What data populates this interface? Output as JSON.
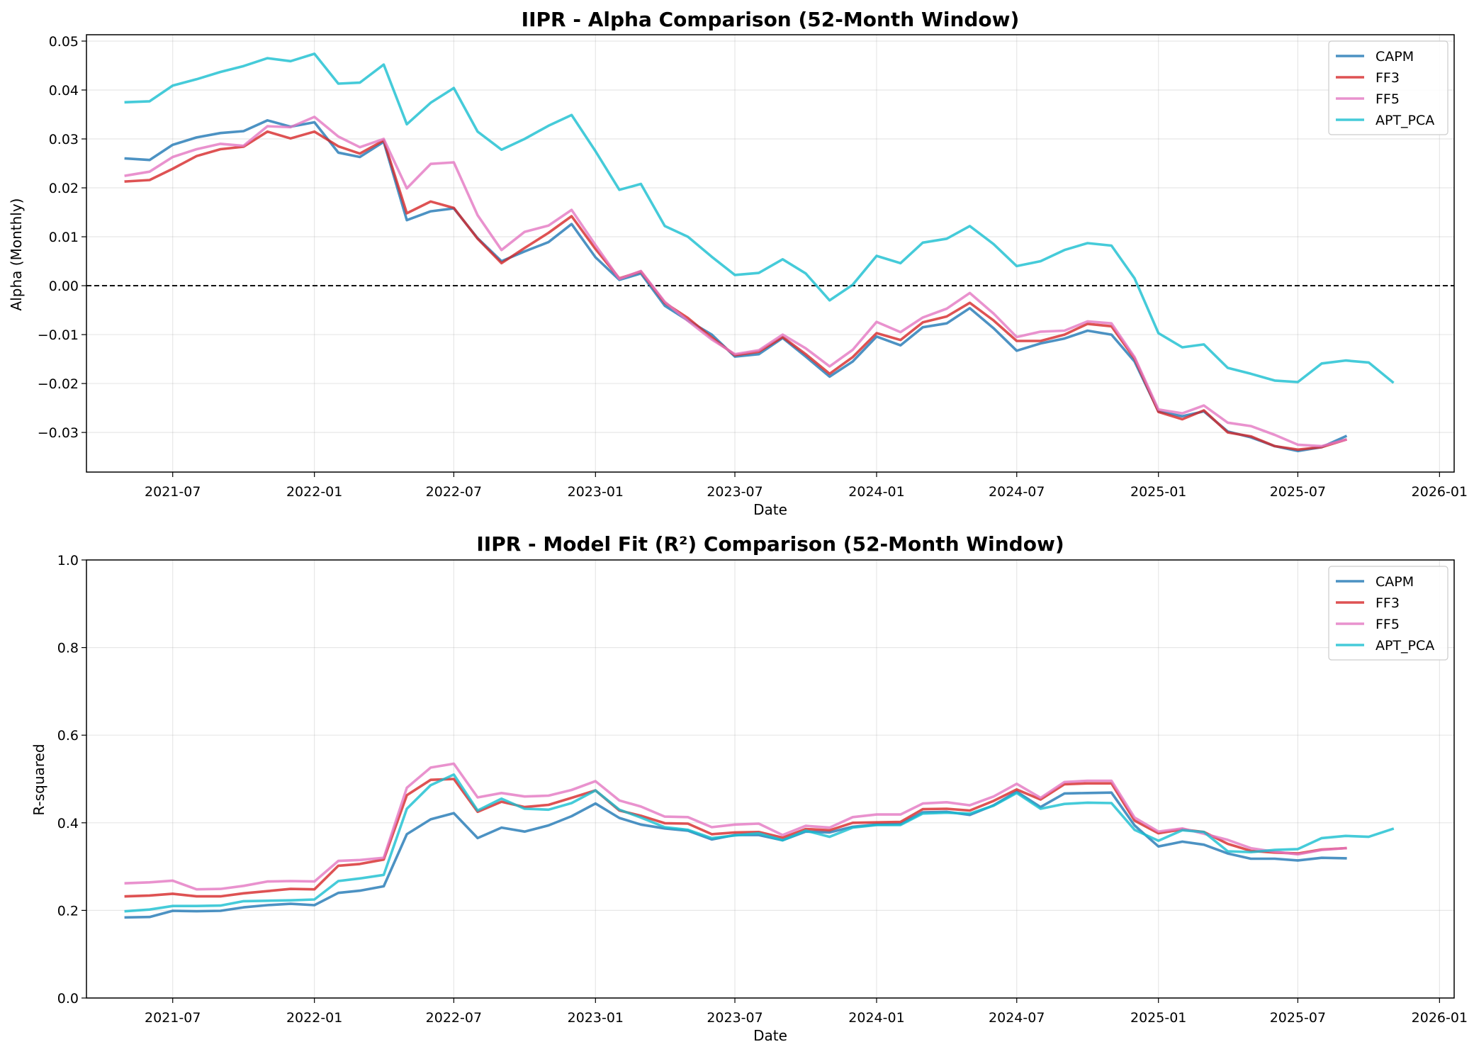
{
  "chart_data": [
    {
      "type": "line",
      "title": "IIPR - Alpha Comparison (52-Month Window)",
      "xlabel": "Date",
      "ylabel": "Alpha (Monthly)",
      "xlim": [
        "2021-03-11",
        "2026-01-20"
      ],
      "ylim": [
        -0.0381,
        0.0513
      ],
      "xticks": [
        "2021-07",
        "2022-01",
        "2022-07",
        "2023-01",
        "2023-07",
        "2024-01",
        "2024-07",
        "2025-01",
        "2025-07",
        "2026-01"
      ],
      "yticks": [
        -0.03,
        -0.02,
        -0.01,
        0.0,
        0.01,
        0.02,
        0.03,
        0.04,
        0.05
      ],
      "ytick_labels": [
        "−0.03",
        "−0.02",
        "−0.01",
        "0.00",
        "0.01",
        "0.02",
        "0.03",
        "0.04",
        "0.05"
      ],
      "grid": true,
      "legend": "top-right",
      "reference_line": {
        "y": 0.0,
        "style": "dashed",
        "color": "#000000"
      },
      "x_start": "2021-05",
      "series": [
        {
          "name": "CAPM",
          "color": "#1f77b4",
          "values": [
            0.026,
            0.0257,
            0.0288,
            0.0303,
            0.0312,
            0.0316,
            0.0338,
            0.0325,
            0.0334,
            0.0272,
            0.0263,
            0.0294,
            0.0134,
            0.0152,
            0.0158,
            0.0097,
            0.005,
            0.007,
            0.0089,
            0.0126,
            0.0058,
            0.0012,
            0.0025,
            -0.0041,
            -0.0071,
            -0.01,
            -0.0145,
            -0.014,
            -0.0107,
            -0.0145,
            -0.0186,
            -0.0155,
            -0.0104,
            -0.0122,
            -0.0085,
            -0.0077,
            -0.0046,
            -0.0087,
            -0.0133,
            -0.0118,
            -0.0108,
            -0.0092,
            -0.01,
            -0.0155,
            -0.0257,
            -0.0267,
            -0.0257,
            -0.0298,
            -0.031,
            -0.0328,
            -0.0338,
            -0.033,
            -0.0308
          ]
        },
        {
          "name": "FF3",
          "color": "#d62728",
          "values": [
            0.0213,
            0.0216,
            0.0239,
            0.0265,
            0.0279,
            0.0284,
            0.0315,
            0.0301,
            0.0315,
            0.0285,
            0.027,
            0.0297,
            0.0148,
            0.0172,
            0.0159,
            0.0096,
            0.0046,
            0.0077,
            0.0108,
            0.0142,
            0.0075,
            0.0015,
            0.0029,
            -0.0035,
            -0.0066,
            -0.0106,
            -0.0142,
            -0.0135,
            -0.0105,
            -0.014,
            -0.018,
            -0.0146,
            -0.0097,
            -0.0111,
            -0.0075,
            -0.0063,
            -0.0035,
            -0.0071,
            -0.0113,
            -0.0113,
            -0.01,
            -0.0078,
            -0.0083,
            -0.0149,
            -0.0258,
            -0.0273,
            -0.0255,
            -0.03,
            -0.0308,
            -0.0328,
            -0.0335,
            -0.033,
            -0.0315
          ]
        },
        {
          "name": "FF5",
          "color": "#e377c2",
          "values": [
            0.0225,
            0.0233,
            0.0263,
            0.0279,
            0.029,
            0.0286,
            0.0326,
            0.0324,
            0.0345,
            0.0305,
            0.0283,
            0.03,
            0.0199,
            0.0249,
            0.0252,
            0.0144,
            0.0073,
            0.011,
            0.0123,
            0.0155,
            0.0083,
            0.0014,
            0.003,
            -0.0033,
            -0.0072,
            -0.011,
            -0.014,
            -0.0132,
            -0.01,
            -0.0128,
            -0.0165,
            -0.0131,
            -0.0074,
            -0.0095,
            -0.0065,
            -0.0047,
            -0.0015,
            -0.0057,
            -0.0105,
            -0.0094,
            -0.0092,
            -0.0073,
            -0.0077,
            -0.0146,
            -0.0253,
            -0.0261,
            -0.0245,
            -0.028,
            -0.0287,
            -0.0305,
            -0.0325,
            -0.0328,
            -0.0315
          ]
        },
        {
          "name": "APT_PCA",
          "color": "#17becf",
          "values": [
            0.0375,
            0.0377,
            0.0409,
            0.0422,
            0.0437,
            0.0449,
            0.0465,
            0.0459,
            0.0474,
            0.0413,
            0.0415,
            0.0452,
            0.033,
            0.0374,
            0.0404,
            0.0315,
            0.0278,
            0.03,
            0.0327,
            0.0349,
            0.0275,
            0.0196,
            0.0208,
            0.0122,
            0.01,
            0.0059,
            0.0022,
            0.0026,
            0.0054,
            0.0025,
            -0.003,
            0.0002,
            0.0061,
            0.0046,
            0.0088,
            0.0096,
            0.0122,
            0.0085,
            0.004,
            0.005,
            0.0073,
            0.0087,
            0.0082,
            0.0015,
            -0.0097,
            -0.0126,
            -0.012,
            -0.0168,
            -0.018,
            -0.0194,
            -0.0197,
            -0.0159,
            -0.0153,
            -0.0157,
            -0.0197
          ]
        }
      ]
    },
    {
      "type": "line",
      "title": "IIPR - Model Fit (R²) Comparison (52-Month Window)",
      "xlabel": "Date",
      "ylabel": "R-squared",
      "xlim": [
        "2021-03-11",
        "2026-01-20"
      ],
      "ylim": [
        0.0,
        1.0
      ],
      "xticks": [
        "2021-07",
        "2022-01",
        "2022-07",
        "2023-01",
        "2023-07",
        "2024-01",
        "2024-07",
        "2025-01",
        "2025-07",
        "2026-01"
      ],
      "yticks": [
        0.0,
        0.2,
        0.4,
        0.6,
        0.8,
        1.0
      ],
      "ytick_labels": [
        "0.0",
        "0.2",
        "0.4",
        "0.6",
        "0.8",
        "1.0"
      ],
      "grid": true,
      "legend": "top-right",
      "x_start": "2021-05",
      "series": [
        {
          "name": "CAPM",
          "color": "#1f77b4",
          "values": [
            0.184,
            0.185,
            0.199,
            0.198,
            0.199,
            0.207,
            0.212,
            0.215,
            0.212,
            0.24,
            0.245,
            0.255,
            0.374,
            0.408,
            0.422,
            0.365,
            0.389,
            0.38,
            0.394,
            0.415,
            0.444,
            0.411,
            0.396,
            0.387,
            0.382,
            0.362,
            0.372,
            0.372,
            0.36,
            0.38,
            0.378,
            0.391,
            0.396,
            0.397,
            0.424,
            0.425,
            0.418,
            0.44,
            0.471,
            0.436,
            0.467,
            0.468,
            0.469,
            0.394,
            0.346,
            0.357,
            0.35,
            0.33,
            0.318,
            0.318,
            0.314,
            0.32,
            0.319
          ]
        },
        {
          "name": "FF3",
          "color": "#d62728",
          "values": [
            0.232,
            0.234,
            0.238,
            0.232,
            0.232,
            0.239,
            0.244,
            0.249,
            0.248,
            0.302,
            0.306,
            0.316,
            0.463,
            0.498,
            0.5,
            0.425,
            0.448,
            0.436,
            0.441,
            0.457,
            0.474,
            0.428,
            0.416,
            0.399,
            0.398,
            0.374,
            0.378,
            0.379,
            0.366,
            0.386,
            0.383,
            0.4,
            0.401,
            0.402,
            0.431,
            0.432,
            0.428,
            0.45,
            0.476,
            0.453,
            0.488,
            0.49,
            0.49,
            0.405,
            0.376,
            0.385,
            0.379,
            0.352,
            0.336,
            0.332,
            0.33,
            0.339,
            0.342
          ]
        },
        {
          "name": "FF5",
          "color": "#e377c2",
          "values": [
            0.262,
            0.264,
            0.268,
            0.248,
            0.249,
            0.256,
            0.266,
            0.267,
            0.266,
            0.313,
            0.315,
            0.32,
            0.48,
            0.526,
            0.535,
            0.458,
            0.468,
            0.46,
            0.462,
            0.475,
            0.495,
            0.451,
            0.437,
            0.414,
            0.413,
            0.39,
            0.396,
            0.398,
            0.372,
            0.393,
            0.389,
            0.413,
            0.419,
            0.419,
            0.444,
            0.447,
            0.44,
            0.46,
            0.489,
            0.457,
            0.493,
            0.496,
            0.496,
            0.412,
            0.38,
            0.387,
            0.375,
            0.361,
            0.342,
            0.334,
            0.328,
            0.338,
            0.342
          ]
        },
        {
          "name": "APT_PCA",
          "color": "#17becf",
          "values": [
            0.198,
            0.202,
            0.21,
            0.21,
            0.211,
            0.221,
            0.222,
            0.223,
            0.225,
            0.267,
            0.273,
            0.281,
            0.432,
            0.486,
            0.51,
            0.428,
            0.455,
            0.432,
            0.43,
            0.445,
            0.474,
            0.43,
            0.412,
            0.39,
            0.384,
            0.365,
            0.371,
            0.376,
            0.36,
            0.382,
            0.368,
            0.389,
            0.395,
            0.395,
            0.421,
            0.423,
            0.421,
            0.439,
            0.468,
            0.432,
            0.443,
            0.446,
            0.445,
            0.384,
            0.359,
            0.383,
            0.379,
            0.335,
            0.333,
            0.338,
            0.34,
            0.365,
            0.37,
            0.368,
            0.386
          ]
        }
      ]
    }
  ]
}
